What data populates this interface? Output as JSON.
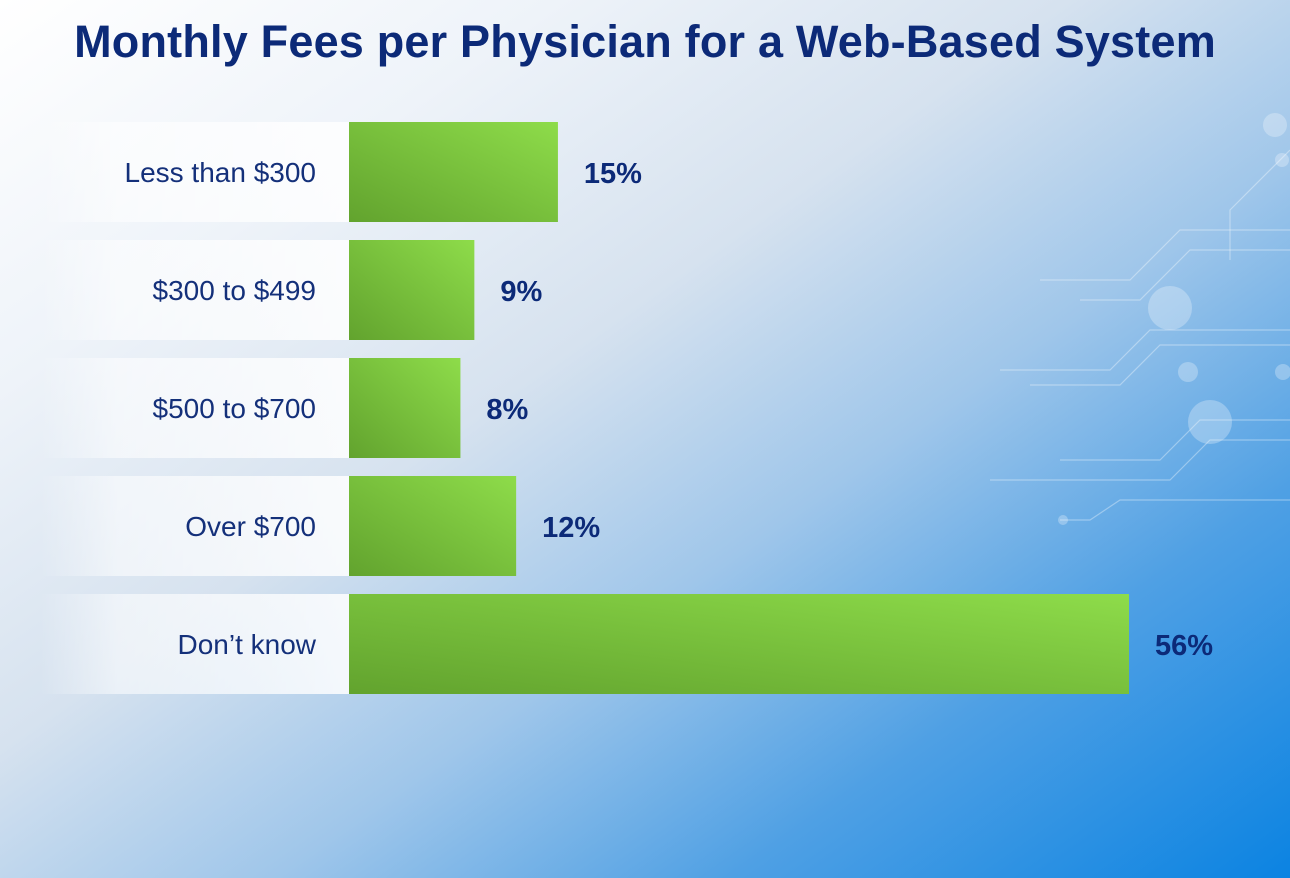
{
  "chart_data": {
    "type": "bar",
    "orientation": "horizontal",
    "title": "Monthly Fees per Physician for a Web-Based System",
    "categories": [
      "Less than $300",
      "$300 to $499",
      "$500 to $700",
      "Over $700",
      "Don’t know"
    ],
    "values": [
      15,
      9,
      8,
      12,
      56
    ],
    "value_labels": [
      "15%",
      "9%",
      "8%",
      "12%",
      "56%"
    ],
    "xlim": [
      0,
      56
    ],
    "grid": false,
    "legend": "none",
    "colors": {
      "bar_dark": "#62a32e",
      "bar_light": "#8edc4a",
      "title": "#0c2a78",
      "label": "#14307a"
    }
  }
}
